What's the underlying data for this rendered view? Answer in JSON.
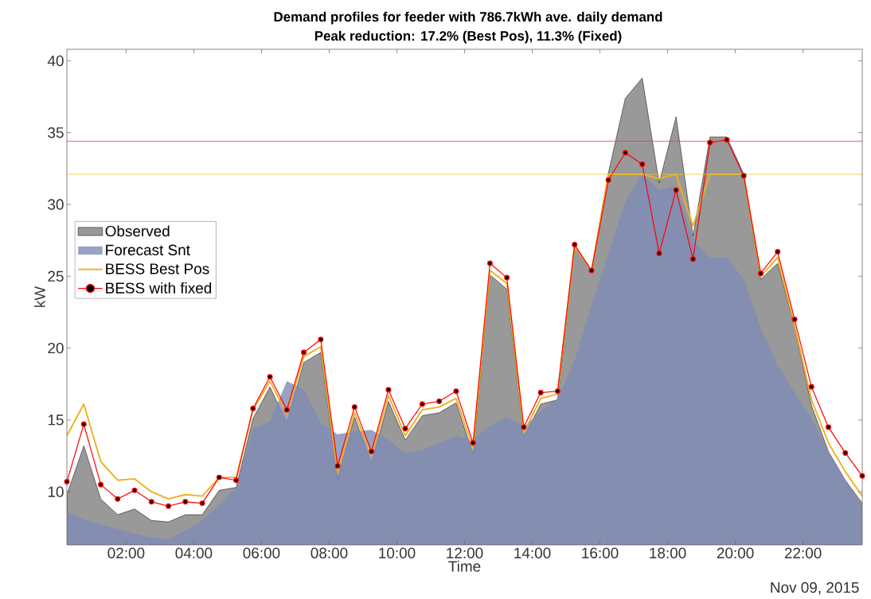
{
  "chart_data": {
    "type": "area",
    "title": "Demand profiles for feeder with 786.7kWh ave. daily demand",
    "subtitle": "Peak reduction: 17.2% (Best Pos), 11.3% (Fixed)",
    "xlabel": "Time",
    "ylabel": "kW",
    "annotations": [
      "Nov 09, 2015"
    ],
    "x": [
      0.25,
      0.75,
      1.25,
      1.75,
      2.25,
      2.75,
      3.25,
      3.75,
      4.25,
      4.75,
      5.25,
      5.75,
      6.25,
      6.75,
      7.25,
      7.75,
      8.25,
      8.75,
      9.25,
      9.75,
      10.25,
      10.75,
      11.25,
      11.75,
      12.25,
      12.75,
      13.25,
      13.75,
      14.25,
      14.75,
      15.25,
      15.75,
      16.25,
      16.75,
      17.25,
      17.75,
      18.25,
      18.75,
      19.25,
      19.75,
      20.25,
      20.75,
      21.25,
      21.75,
      22.25,
      22.75,
      23.25,
      23.75
    ],
    "series": [
      {
        "name": "Observed",
        "color": "#999999",
        "values": [
          9.8,
          13.2,
          9.5,
          8.4,
          8.8,
          8.0,
          7.9,
          8.4,
          8.4,
          10.1,
          10.3,
          15.1,
          17.3,
          14.8,
          19.0,
          19.7,
          10.9,
          15.2,
          12.0,
          16.3,
          13.6,
          15.3,
          15.5,
          16.2,
          12.6,
          25.1,
          24.1,
          13.8,
          16.1,
          16.4,
          27.1,
          25.4,
          32.2,
          37.4,
          38.8,
          31.5,
          36.1,
          27.8,
          34.7,
          34.7,
          32.1,
          24.8,
          25.9,
          21.5,
          16.0,
          12.8,
          10.8,
          9.2
        ]
      },
      {
        "name": "Forecast Snt",
        "color": "#7e8bb5",
        "values": [
          8.6,
          8.1,
          7.7,
          7.4,
          7.1,
          6.8,
          6.7,
          7.3,
          8.0,
          9.1,
          10.3,
          14.4,
          14.9,
          17.7,
          17.1,
          14.8,
          14.0,
          14.2,
          14.3,
          13.6,
          12.7,
          12.9,
          13.4,
          13.9,
          13.6,
          14.6,
          15.2,
          14.5,
          15.6,
          16.5,
          19.1,
          23.0,
          26.5,
          30.2,
          32.1,
          31.0,
          31.3,
          27.5,
          26.3,
          26.3,
          24.8,
          21.4,
          18.8,
          16.9,
          15.1,
          12.8,
          10.8,
          9.0
        ]
      },
      {
        "name": "BESS Best Pos",
        "type": "line",
        "marker": "none",
        "color": "#edb120",
        "values": [
          13.9,
          16.1,
          12.1,
          10.8,
          10.9,
          10.0,
          9.5,
          9.8,
          9.7,
          11.0,
          11.0,
          15.7,
          17.7,
          15.4,
          19.4,
          20.1,
          11.3,
          15.5,
          12.5,
          16.7,
          13.9,
          15.7,
          15.9,
          16.5,
          13.0,
          25.4,
          24.5,
          14.1,
          16.5,
          16.8,
          27.1,
          25.4,
          32.1,
          32.1,
          32.1,
          31.8,
          32.1,
          28.5,
          32.1,
          32.1,
          32.1,
          25.0,
          26.3,
          21.6,
          16.4,
          13.4,
          11.4,
          9.7
        ]
      },
      {
        "name": "BESS with fixed",
        "type": "line",
        "marker": "circle",
        "color": "#ff0000",
        "values": [
          10.7,
          14.7,
          10.5,
          9.5,
          10.1,
          9.3,
          9.0,
          9.3,
          9.2,
          11.0,
          10.8,
          15.8,
          18.0,
          15.7,
          19.7,
          20.6,
          11.8,
          15.9,
          12.8,
          17.1,
          14.4,
          16.1,
          16.3,
          17.0,
          13.4,
          25.9,
          24.9,
          14.5,
          16.9,
          17.0,
          27.2,
          25.4,
          31.7,
          33.6,
          32.8,
          26.6,
          31.0,
          26.2,
          34.3,
          34.5,
          32.0,
          25.2,
          26.7,
          22.0,
          17.3,
          14.5,
          12.7,
          11.1
        ]
      }
    ],
    "ref_lines": [
      {
        "axis": "y",
        "value": 34.4,
        "color": "#ff3333"
      },
      {
        "axis": "y",
        "value": 32.1,
        "color": "#e8c840"
      }
    ],
    "xlim": [
      0.25,
      23.75
    ],
    "ylim": [
      6.3,
      40.8
    ],
    "xticks": [
      {
        "value": 2,
        "label": "02:00"
      },
      {
        "value": 4,
        "label": "04:00"
      },
      {
        "value": 6,
        "label": "06:00"
      },
      {
        "value": 8,
        "label": "08:00"
      },
      {
        "value": 10,
        "label": "10:00"
      },
      {
        "value": 12,
        "label": "12:00"
      },
      {
        "value": 14,
        "label": "14:00"
      },
      {
        "value": 16,
        "label": "16:00"
      },
      {
        "value": 18,
        "label": "18:00"
      },
      {
        "value": 20,
        "label": "20:00"
      },
      {
        "value": 22,
        "label": "22:00"
      }
    ],
    "yticks": [
      10,
      15,
      20,
      25,
      30,
      35,
      40
    ],
    "legend": "left",
    "grid": false
  }
}
